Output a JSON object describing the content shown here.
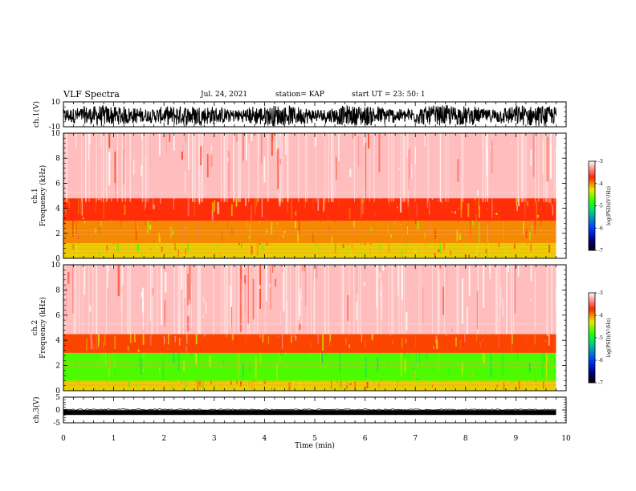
{
  "header": {
    "title": "VLF Spectra",
    "date": "Jul. 24, 2021",
    "station": "station= KAP",
    "start": "start UT =  23: 50: 1"
  },
  "chart_data": [
    {
      "type": "line",
      "panel": "ch1-waveform",
      "ylabel": "ch.1(V)",
      "ylim": [
        -10,
        10
      ],
      "yticks": [
        "10",
        "-10"
      ],
      "xlim": [
        0,
        10
      ],
      "note": "dense noisy waveform roughly between -8 and 8 V over 0-9.8 min"
    },
    {
      "type": "heatmap",
      "panel": "ch1-spectrogram",
      "ylabel": "ch.1\nFrequency (kHz)",
      "ylim": [
        0,
        10
      ],
      "yticks": [
        "0",
        "2",
        "4",
        "6",
        "8",
        "10"
      ],
      "xlim": [
        0,
        10
      ],
      "data_end_min": 9.8,
      "colorbar": {
        "min": -7,
        "max": -3,
        "ticks": [
          "-3",
          "-4",
          "-5",
          "-6",
          "-7"
        ],
        "label": "log(PSD)(V²/Hz)"
      },
      "bands_khz": [
        {
          "from": 0,
          "to": 1.2,
          "level": -4.2
        },
        {
          "from": 1.2,
          "to": 3.0,
          "level": -4.0
        },
        {
          "from": 3.0,
          "to": 4.8,
          "level": -3.7
        },
        {
          "from": 4.8,
          "to": 10,
          "level": -3.2
        }
      ]
    },
    {
      "type": "heatmap",
      "panel": "ch2-spectrogram",
      "ylabel": "ch.2\nFrequency (kHz)",
      "ylim": [
        0,
        10
      ],
      "yticks": [
        "0",
        "2",
        "4",
        "6",
        "8",
        "10"
      ],
      "xlim": [
        0,
        10
      ],
      "data_end_min": 9.8,
      "colorbar": {
        "min": -7,
        "max": -3,
        "ticks": [
          "-3",
          "-4",
          "-5",
          "-6",
          "-7"
        ],
        "label": "log(PSD)(V²/Hz)"
      },
      "bands_khz": [
        {
          "from": 0,
          "to": 0.8,
          "level": -4.2
        },
        {
          "from": 0.8,
          "to": 3.0,
          "level": -4.7
        },
        {
          "from": 3.0,
          "to": 4.5,
          "level": -3.8
        },
        {
          "from": 4.5,
          "to": 10,
          "level": -3.2
        }
      ]
    },
    {
      "type": "line",
      "panel": "ch3-waveform",
      "ylabel": "ch.3(V)",
      "ylim": [
        -5,
        5
      ],
      "yticks": [
        "5",
        "0",
        "-5"
      ],
      "xlim": [
        0,
        10
      ],
      "xlabel": "Time (min)",
      "xticks": [
        "0",
        "1",
        "2",
        "3",
        "4",
        "5",
        "6",
        "7",
        "8",
        "9",
        "10"
      ],
      "note": "nearly constant thick band near -1 V over 0-9.8 min"
    }
  ]
}
